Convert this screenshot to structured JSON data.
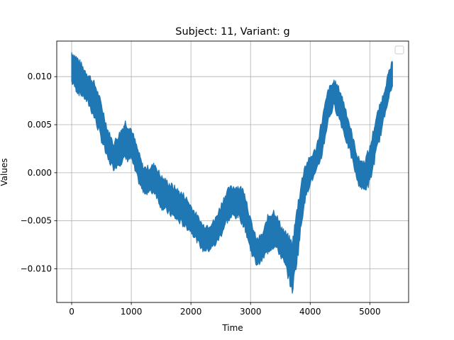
{
  "chart_data": {
    "type": "line",
    "title": "Subject: 11, Variant: g",
    "xlabel": "Time",
    "ylabel": "Values",
    "xlim": [
      -250,
      5650
    ],
    "ylim": [
      -0.0135,
      0.0137
    ],
    "xticks": [
      0,
      1000,
      2000,
      3000,
      4000,
      5000
    ],
    "xtick_labels": [
      "0",
      "1000",
      "2000",
      "3000",
      "4000",
      "5000"
    ],
    "yticks": [
      -0.01,
      -0.005,
      0.0,
      0.005,
      0.01
    ],
    "ytick_labels": [
      "−0.010",
      "−0.005",
      "0.000",
      "0.005",
      "0.010"
    ],
    "grid": true,
    "legend": {
      "placement": "top-right",
      "entries": []
    },
    "series": [
      {
        "color": "#1f77b4",
        "x": [
          0,
          100,
          200,
          300,
          400,
          500,
          600,
          700,
          800,
          900,
          1000,
          1100,
          1200,
          1300,
          1400,
          1500,
          1600,
          1700,
          1800,
          1900,
          2000,
          2100,
          2200,
          2300,
          2400,
          2500,
          2600,
          2700,
          2800,
          2900,
          3000,
          3100,
          3200,
          3300,
          3400,
          3500,
          3600,
          3700,
          3800,
          3900,
          4000,
          4100,
          4200,
          4300,
          4400,
          4500,
          4600,
          4700,
          4800,
          4900,
          5000,
          5100,
          5200,
          5300,
          5380
        ],
        "upper": [
          0.0125,
          0.0118,
          0.0108,
          0.01,
          0.009,
          0.007,
          0.0045,
          0.003,
          0.004,
          0.0052,
          0.0045,
          0.0025,
          0.0005,
          0.0005,
          0.0008,
          -0.0005,
          -0.001,
          -0.0015,
          -0.002,
          -0.0025,
          -0.0035,
          -0.0045,
          -0.0055,
          -0.0055,
          -0.005,
          -0.0035,
          -0.002,
          -0.0015,
          -0.0015,
          -0.002,
          -0.005,
          -0.007,
          -0.0065,
          -0.0045,
          -0.004,
          -0.0055,
          -0.0065,
          -0.0075,
          -0.003,
          0.0005,
          0.0015,
          0.0025,
          0.0055,
          0.0085,
          0.0095,
          0.0085,
          0.0065,
          0.004,
          0.0015,
          0.001,
          0.0025,
          0.0055,
          0.0075,
          0.01,
          0.0115
        ],
        "lower": [
          0.0095,
          0.0085,
          0.008,
          0.007,
          0.0055,
          0.0035,
          0.0015,
          0.0005,
          0.001,
          0.0015,
          0.0015,
          -0.0005,
          -0.002,
          -0.002,
          -0.002,
          -0.0035,
          -0.004,
          -0.0045,
          -0.005,
          -0.0055,
          -0.006,
          -0.007,
          -0.008,
          -0.008,
          -0.0075,
          -0.0065,
          -0.005,
          -0.0045,
          -0.0045,
          -0.0055,
          -0.008,
          -0.0095,
          -0.009,
          -0.008,
          -0.0075,
          -0.0085,
          -0.01,
          -0.0122,
          -0.008,
          -0.003,
          -0.001,
          0.0,
          0.002,
          0.0055,
          0.007,
          0.0055,
          0.0035,
          0.0015,
          -0.001,
          -0.0018,
          -0.001,
          0.002,
          0.0045,
          0.0075,
          0.009
        ]
      }
    ]
  }
}
